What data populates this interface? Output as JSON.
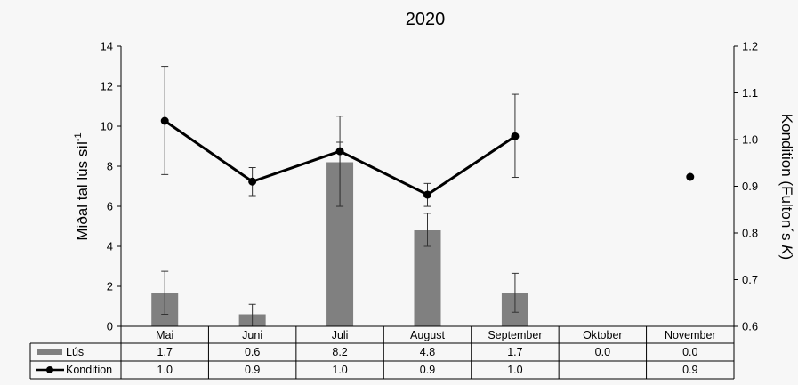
{
  "chart_data": {
    "type": "bar",
    "title": "2020",
    "categories": [
      "Mai",
      "Juni",
      "Juli",
      "August",
      "September",
      "Oktober",
      "November"
    ],
    "ylabel_left": "Miðal tal lús síl",
    "ylabel_left_sup": "-1",
    "ylabel_right": "Kondition (Fulton´s ",
    "ylabel_right_italic": "K",
    "ylabel_right_close": ")",
    "ylim_left": [
      0,
      14
    ],
    "ylim_right": [
      0.6,
      1.2
    ],
    "yticks_left": [
      "0",
      "2",
      "4",
      "6",
      "8",
      "10",
      "12",
      "14"
    ],
    "yticks_right": [
      "0.6",
      "0.7",
      "0.8",
      "0.9",
      "1.0",
      "1.1",
      "1.2"
    ],
    "series": [
      {
        "name": "Lús",
        "kind": "bar",
        "axis": "left",
        "color": "#808080",
        "values": [
          1.65,
          0.6,
          8.2,
          4.8,
          1.65,
          0.0,
          0.0
        ],
        "error_low": [
          0.6,
          0.0,
          6.0,
          4.0,
          0.7,
          null,
          null
        ],
        "error_high": [
          2.75,
          1.1,
          9.2,
          5.65,
          2.65,
          null,
          null
        ],
        "table_labels": [
          "1.7",
          "0.6",
          "8.2",
          "4.8",
          "1.7",
          "0.0",
          "0.0"
        ]
      },
      {
        "name": "Kondition",
        "kind": "line",
        "axis": "right",
        "color": "#000000",
        "values": [
          1.04,
          0.91,
          0.975,
          0.882,
          1.007,
          null,
          0.92
        ],
        "error_low": [
          0.925,
          0.88,
          0.857,
          0.857,
          0.919,
          null,
          null
        ],
        "error_high": [
          1.157,
          0.94,
          1.05,
          0.906,
          1.097,
          null,
          null
        ],
        "table_labels": [
          "1.0",
          "0.9",
          "1.0",
          "0.9",
          "1.0",
          "",
          "0.9"
        ]
      }
    ]
  }
}
